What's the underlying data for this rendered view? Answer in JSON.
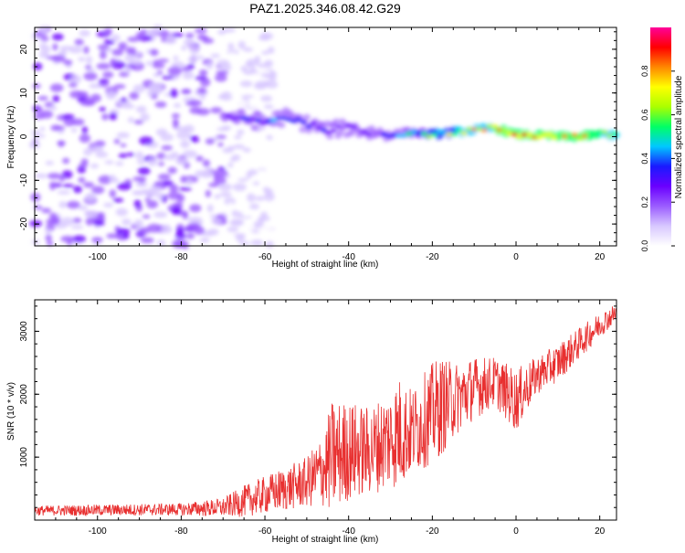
{
  "title": "PAZ1.2025.346.08.42.G29",
  "chart_data": [
    {
      "type": "heatmap",
      "name": "spectrogram",
      "xlabel": "Height of straight line (km)",
      "ylabel": "Frequency (Hz)",
      "xlim": [
        -115,
        24
      ],
      "ylim": [
        -25,
        25
      ],
      "xticks": [
        -100,
        -80,
        -60,
        -40,
        -20,
        0,
        20
      ],
      "yticks": [
        -20,
        -10,
        0,
        10,
        20
      ],
      "colorbar": {
        "label": "Normalized spectral amplitude",
        "range": [
          0,
          1
        ],
        "ticks": [
          0.0,
          0.2,
          0.4,
          0.6,
          0.8
        ],
        "colors": [
          "#ffffff",
          "#d8c8ff",
          "#9b5cff",
          "#6a00ff",
          "#1a1aff",
          "#00c8ff",
          "#00ff66",
          "#aaff00",
          "#ffff00",
          "#ff8800",
          "#ff0000",
          "#ff0099"
        ]
      },
      "trace": {
        "x": [
          -70,
          -65,
          -60,
          -55,
          -50,
          -45,
          -40,
          -35,
          -30,
          -25,
          -20,
          -15,
          -10,
          -5,
          0,
          5,
          10,
          15,
          20,
          24
        ],
        "y": [
          5,
          4,
          3.5,
          4.5,
          3,
          1.5,
          2,
          1,
          0.5,
          1,
          0.5,
          1,
          1.5,
          2,
          0.5,
          0.3,
          0,
          0,
          0.5,
          0.5
        ],
        "amplitude": [
          0.25,
          0.35,
          0.4,
          0.45,
          0.35,
          0.4,
          0.35,
          0.3,
          0.45,
          0.55,
          0.65,
          0.7,
          0.75,
          0.8,
          0.85,
          0.8,
          0.85,
          0.8,
          0.8,
          0.75
        ]
      },
      "noise_region": [
        -115,
        -70
      ]
    },
    {
      "type": "line",
      "name": "snr",
      "xlabel": "Height of straight line (km)",
      "ylabel": "SNR (10 * v/v)",
      "xlim": [
        -115,
        24
      ],
      "ylim": [
        0,
        3500
      ],
      "xticks": [
        -100,
        -80,
        -60,
        -40,
        -20,
        0,
        20
      ],
      "yticks": [
        1000,
        2000,
        3000
      ],
      "color": "#e83030",
      "envelope": {
        "x": [
          -115,
          -80,
          -70,
          -65,
          -60,
          -55,
          -50,
          -46,
          -44,
          -40,
          -35,
          -30,
          -28,
          -25,
          -20,
          -18,
          -15,
          -10,
          -5,
          0,
          5,
          10,
          15,
          20,
          24
        ],
        "mean": [
          150,
          170,
          200,
          300,
          400,
          500,
          600,
          800,
          1000,
          1100,
          1100,
          1300,
          1400,
          1400,
          1700,
          1800,
          1900,
          2100,
          2200,
          1900,
          2300,
          2500,
          2800,
          3100,
          3300
        ],
        "spread": [
          80,
          100,
          150,
          250,
          300,
          350,
          400,
          600,
          900,
          800,
          700,
          800,
          900,
          700,
          800,
          800,
          600,
          500,
          400,
          500,
          300,
          300,
          250,
          200,
          150
        ]
      }
    }
  ]
}
